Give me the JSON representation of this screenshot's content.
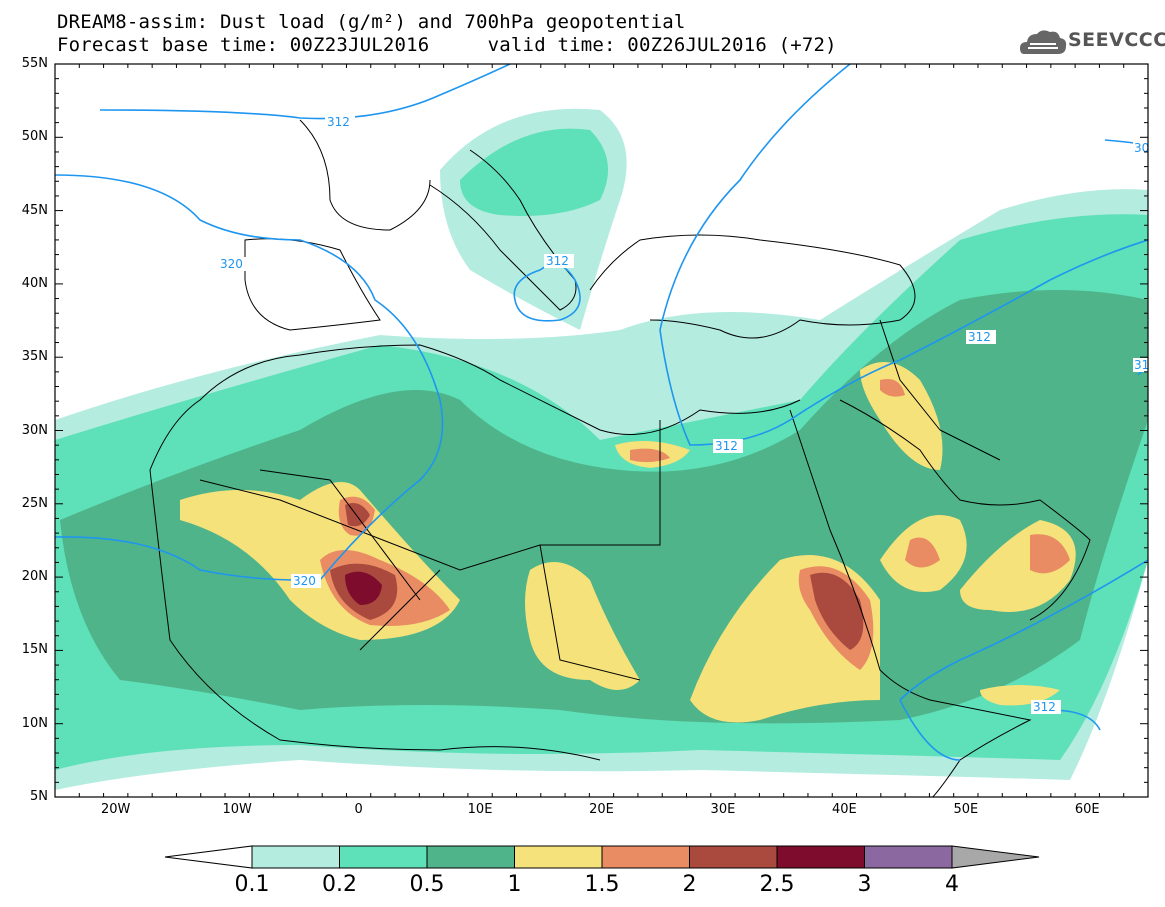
{
  "title": {
    "line1": "DREAM8-assim: Dust load (g/m²) and 700hPa geopotential",
    "line2": "Forecast base time: 00Z23JUL2016     valid time: 00Z26JUL2016 (+72)"
  },
  "logo": {
    "text": "SEEVCCC",
    "icon": "cloud-logo-icon"
  },
  "axes": {
    "lat_labels": [
      "55N",
      "50N",
      "45N",
      "40N",
      "35N",
      "30N",
      "25N",
      "20N",
      "15N",
      "10N",
      "5N"
    ],
    "lon_labels": [
      "20W",
      "10W",
      "0",
      "10E",
      "20E",
      "30E",
      "40E",
      "50E",
      "60E"
    ],
    "lat_range": [
      5,
      55
    ],
    "lon_range": [
      -25,
      65
    ]
  },
  "contour_labels": [
    "312",
    "320",
    "312",
    "312",
    "320",
    "312",
    "312",
    "30",
    "31"
  ],
  "colorbar": {
    "levels": [
      "0.1",
      "0.2",
      "0.5",
      "1",
      "1.5",
      "2",
      "2.5",
      "3",
      "4"
    ],
    "colors": [
      "#ffffff",
      "#b4ece0",
      "#5ee0b8",
      "#4fb48a",
      "#f5e27a",
      "#e98c64",
      "#aa4a3e",
      "#7e0c2c",
      "#8c68a0",
      "#a8a8a8"
    ]
  },
  "colors": {
    "geopotential_line": "#1e96f0",
    "coastline": "#000000"
  }
}
